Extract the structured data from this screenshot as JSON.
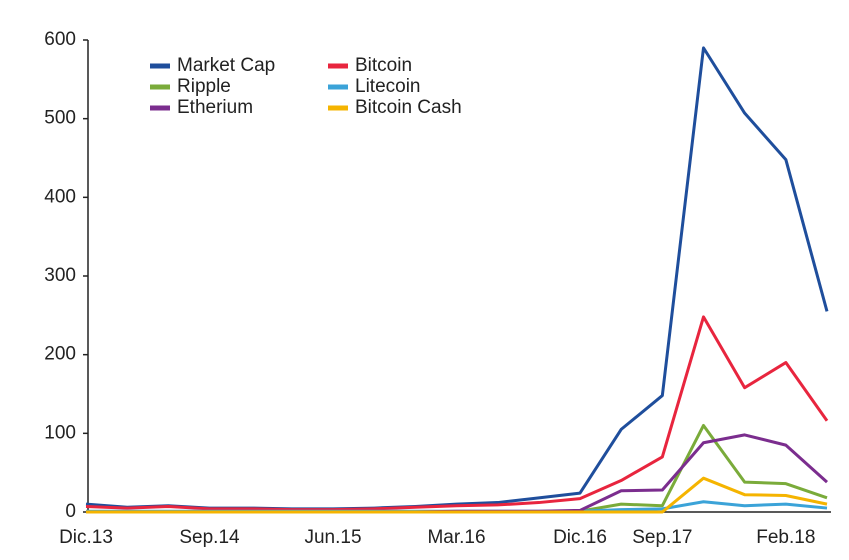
{
  "chart_data": {
    "type": "line",
    "categories": [
      "Dic.13",
      null,
      null,
      "Sep.14",
      null,
      null,
      "Jun.15",
      null,
      null,
      "Mar.16",
      null,
      null,
      "Dic.16",
      null,
      "Sep.17",
      null,
      null,
      "Feb.18",
      null
    ],
    "series": [
      {
        "name": "Market Cap",
        "color": "#1f4e9c",
        "values": [
          10,
          6,
          8,
          5,
          5,
          4,
          4,
          5,
          7,
          10,
          12,
          18,
          24,
          105,
          148,
          590,
          507,
          448,
          255
        ]
      },
      {
        "name": "Bitcoin",
        "color": "#e8253e",
        "values": [
          7,
          5,
          7,
          4,
          4,
          3,
          3,
          4,
          6,
          8,
          9,
          12,
          17,
          40,
          70,
          248,
          158,
          190,
          116
        ]
      },
      {
        "name": "Ripple",
        "color": "#7aab3a",
        "values": [
          0,
          0,
          0,
          0,
          0,
          0,
          0,
          0,
          0,
          0,
          0,
          0,
          1,
          10,
          8,
          110,
          38,
          36,
          18
        ]
      },
      {
        "name": "Litecoin",
        "color": "#3ba3d8",
        "values": [
          1,
          1,
          1,
          1,
          1,
          1,
          1,
          1,
          1,
          1,
          1,
          1,
          1,
          3,
          4,
          13,
          8,
          10,
          5
        ]
      },
      {
        "name": "Etherium",
        "color": "#7b2d8e",
        "values": [
          0,
          0,
          0,
          0,
          0,
          0,
          0,
          0,
          0,
          1,
          1,
          1,
          2,
          27,
          28,
          88,
          98,
          85,
          38
        ]
      },
      {
        "name": "Bitcoin Cash",
        "color": "#f5b400",
        "values": [
          0,
          0,
          0,
          0,
          0,
          0,
          0,
          0,
          0,
          0,
          0,
          0,
          0,
          0,
          0,
          43,
          22,
          21,
          10
        ]
      }
    ],
    "ylim": [
      0,
      600
    ],
    "yticks": [
      0,
      100,
      200,
      300,
      400,
      500,
      600
    ],
    "grid": false
  }
}
